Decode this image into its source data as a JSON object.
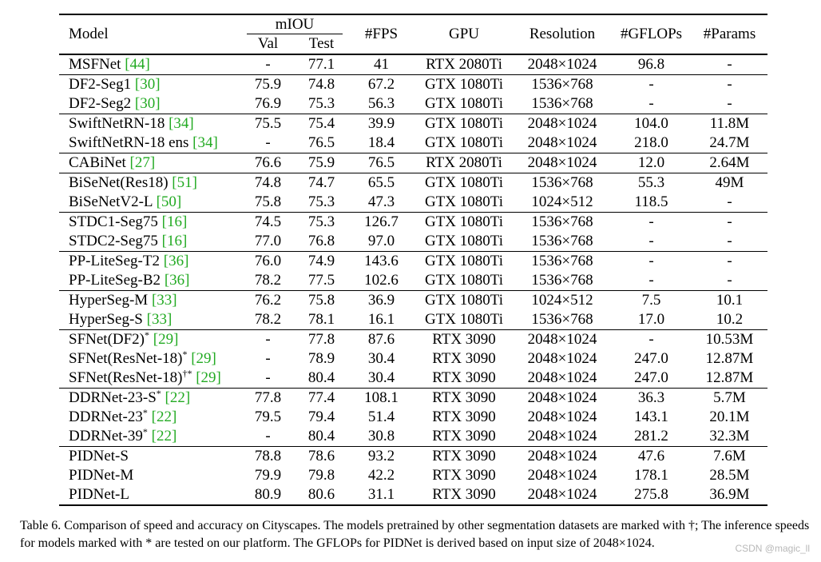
{
  "table": {
    "headers": {
      "model": "Model",
      "miou": "mIOU",
      "val": "Val",
      "test": "Test",
      "fps": "#FPS",
      "gpu": "GPU",
      "resolution": "Resolution",
      "gflops": "#GFLOPs",
      "params": "#Params"
    },
    "rows": [
      {
        "name": "MSFNet",
        "sup": "",
        "ref": "[44]",
        "val": "-",
        "test": "77.1",
        "fps": "41",
        "gpu": "RTX 2080Ti",
        "res": "2048×1024",
        "gflops": "96.8",
        "params": "-"
      },
      {
        "name": "DF2-Seg1",
        "sup": "",
        "ref": "[30]",
        "val": "75.9",
        "test": "74.8",
        "fps": "67.2",
        "gpu": "GTX 1080Ti",
        "res": "1536×768",
        "gflops": "-",
        "params": "-"
      },
      {
        "name": "DF2-Seg2",
        "sup": "",
        "ref": "[30]",
        "val": "76.9",
        "test": "75.3",
        "fps": "56.3",
        "gpu": "GTX 1080Ti",
        "res": "1536×768",
        "gflops": "-",
        "params": "-"
      },
      {
        "name": "SwiftNetRN-18",
        "sup": "",
        "ref": "[34]",
        "val": "75.5",
        "test": "75.4",
        "fps": "39.9",
        "gpu": "GTX 1080Ti",
        "res": "2048×1024",
        "gflops": "104.0",
        "params": "11.8M"
      },
      {
        "name": "SwiftNetRN-18 ens",
        "sup": "",
        "ref": "[34]",
        "val": "-",
        "test": "76.5",
        "fps": "18.4",
        "gpu": "GTX 1080Ti",
        "res": "2048×1024",
        "gflops": "218.0",
        "params": "24.7M"
      },
      {
        "name": "CABiNet",
        "sup": "",
        "ref": "[27]",
        "val": "76.6",
        "test": "75.9",
        "fps": "76.5",
        "gpu": "RTX 2080Ti",
        "res": "2048×1024",
        "gflops": "12.0",
        "params": "2.64M"
      },
      {
        "name": "BiSeNet(Res18)",
        "sup": "",
        "ref": "[51]",
        "val": "74.8",
        "test": "74.7",
        "fps": "65.5",
        "gpu": "GTX 1080Ti",
        "res": "1536×768",
        "gflops": "55.3",
        "params": "49M"
      },
      {
        "name": "BiSeNetV2-L",
        "sup": "",
        "ref": "[50]",
        "val": "75.8",
        "test": "75.3",
        "fps": "47.3",
        "gpu": "GTX 1080Ti",
        "res": "1024×512",
        "gflops": "118.5",
        "params": "-"
      },
      {
        "name": "STDC1-Seg75",
        "sup": "",
        "ref": "[16]",
        "val": "74.5",
        "test": "75.3",
        "fps": "126.7",
        "gpu": "GTX 1080Ti",
        "res": "1536×768",
        "gflops": "-",
        "params": "-"
      },
      {
        "name": "STDC2-Seg75",
        "sup": "",
        "ref": "[16]",
        "val": "77.0",
        "test": "76.8",
        "fps": "97.0",
        "gpu": "GTX 1080Ti",
        "res": "1536×768",
        "gflops": "-",
        "params": "-"
      },
      {
        "name": "PP-LiteSeg-T2",
        "sup": "",
        "ref": "[36]",
        "val": "76.0",
        "test": "74.9",
        "fps": "143.6",
        "gpu": "GTX 1080Ti",
        "res": "1536×768",
        "gflops": "-",
        "params": "-"
      },
      {
        "name": "PP-LiteSeg-B2",
        "sup": "",
        "ref": "[36]",
        "val": "78.2",
        "test": "77.5",
        "fps": "102.6",
        "gpu": "GTX 1080Ti",
        "res": "1536×768",
        "gflops": "-",
        "params": "-"
      },
      {
        "name": "HyperSeg-M",
        "sup": "",
        "ref": "[33]",
        "val": "76.2",
        "test": "75.8",
        "fps": "36.9",
        "gpu": "GTX 1080Ti",
        "res": "1024×512",
        "gflops": "7.5",
        "params": "10.1"
      },
      {
        "name": "HyperSeg-S",
        "sup": "",
        "ref": "[33]",
        "val": "78.2",
        "test": "78.1",
        "fps": "16.1",
        "gpu": "GTX 1080Ti",
        "res": "1536×768",
        "gflops": "17.0",
        "params": "10.2"
      },
      {
        "name": "SFNet(DF2)",
        "sup": "*",
        "ref": "[29]",
        "val": "-",
        "test": "77.8",
        "fps": "87.6",
        "gpu": "RTX 3090",
        "res": "2048×1024",
        "gflops": "-",
        "params": "10.53M"
      },
      {
        "name": "SFNet(ResNet-18)",
        "sup": "*",
        "ref": "[29]",
        "val": "-",
        "test": "78.9",
        "fps": "30.4",
        "gpu": "RTX 3090",
        "res": "2048×1024",
        "gflops": "247.0",
        "params": "12.87M"
      },
      {
        "name": "SFNet(ResNet-18)",
        "sup": "†*",
        "ref": "[29]",
        "val": "-",
        "test": "80.4",
        "fps": "30.4",
        "gpu": "RTX 3090",
        "res": "2048×1024",
        "gflops": "247.0",
        "params": "12.87M"
      },
      {
        "name": "DDRNet-23-S",
        "sup": "*",
        "ref": "[22]",
        "val": "77.8",
        "test": "77.4",
        "fps": "108.1",
        "gpu": "RTX 3090",
        "res": "2048×1024",
        "gflops": "36.3",
        "params": "5.7M"
      },
      {
        "name": "DDRNet-23",
        "sup": "*",
        "ref": "[22]",
        "val": "79.5",
        "test": "79.4",
        "fps": "51.4",
        "gpu": "RTX 3090",
        "res": "2048×1024",
        "gflops": "143.1",
        "params": "20.1M"
      },
      {
        "name": "DDRNet-39",
        "sup": "*",
        "ref": "[22]",
        "val": "-",
        "test": "80.4",
        "fps": "30.8",
        "gpu": "RTX 3090",
        "res": "2048×1024",
        "gflops": "281.2",
        "params": "32.3M"
      },
      {
        "name": "PIDNet-S",
        "sup": "",
        "ref": "",
        "val": "78.8",
        "test": "78.6",
        "fps": "93.2",
        "gpu": "RTX 3090",
        "res": "2048×1024",
        "gflops": "47.6",
        "params": "7.6M"
      },
      {
        "name": "PIDNet-M",
        "sup": "",
        "ref": "",
        "val": "79.9",
        "test": "79.8",
        "fps": "42.2",
        "gpu": "RTX 3090",
        "res": "2048×1024",
        "gflops": "178.1",
        "params": "28.5M"
      },
      {
        "name": "PIDNet-L",
        "sup": "",
        "ref": "",
        "val": "80.9",
        "test": "80.6",
        "fps": "31.1",
        "gpu": "RTX 3090",
        "res": "2048×1024",
        "gflops": "275.8",
        "params": "36.9M"
      }
    ]
  },
  "caption": "Table 6. Comparison of speed and accuracy on Cityscapes. The models pretrained by other segmentation datasets are marked with †; The inference speeds for models marked with * are tested on our platform. The GFLOPs for PIDNet is derived based on input size of 2048×1024.",
  "watermark": "CSDN @magic_ll"
}
